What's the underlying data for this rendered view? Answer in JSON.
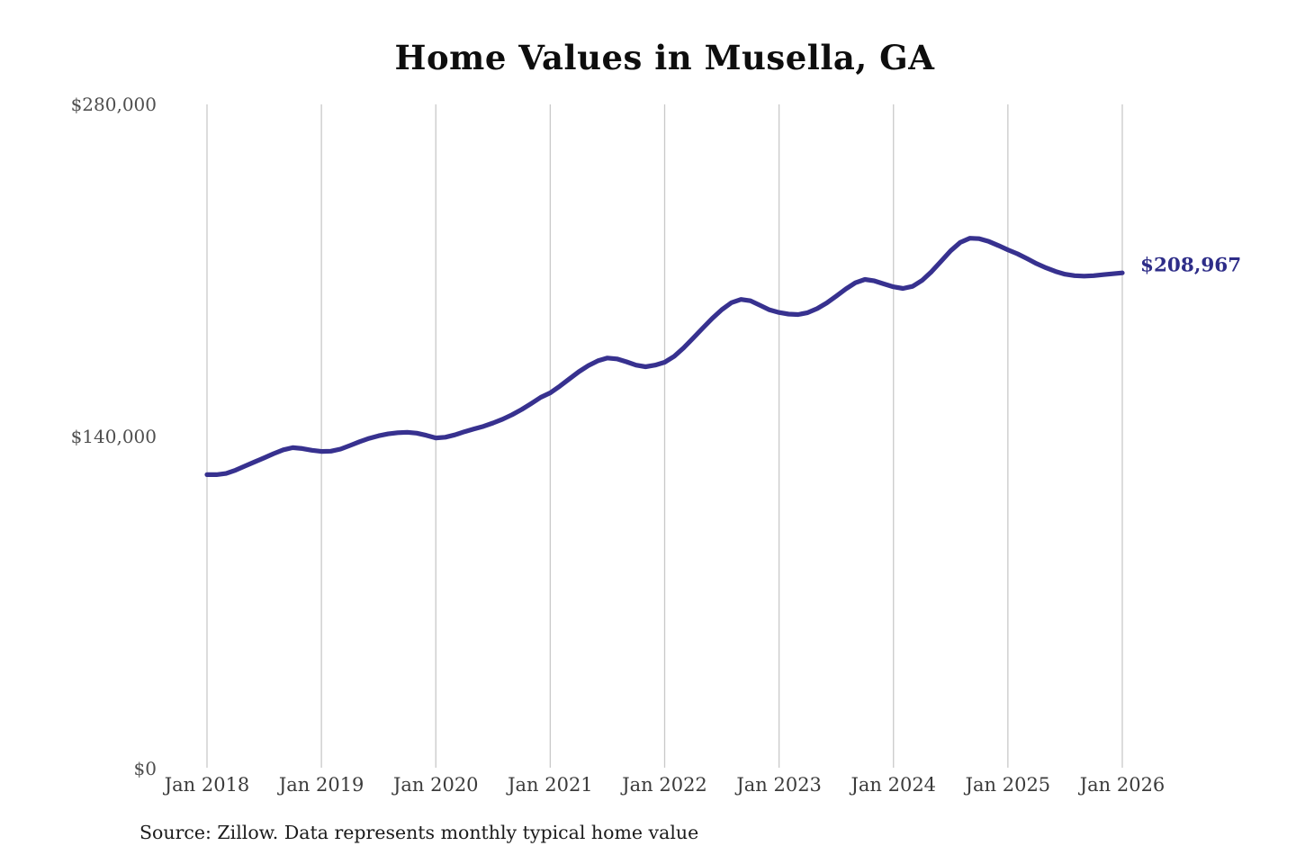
{
  "chart": {
    "title": "Home Values in Musella, GA",
    "end_label": "$208,967",
    "source": "Source: Zillow. Data represents monthly typical home value"
  },
  "chart_data": {
    "type": "line",
    "title": "Home Values in Musella, GA",
    "x_start": "Jan 2018",
    "x_end": "Jan 2026",
    "x_interval": "monthly",
    "x_tick_labels": [
      "Jan 2018",
      "Jan 2019",
      "Jan 2020",
      "Jan 2021",
      "Jan 2022",
      "Jan 2023",
      "Jan 2024",
      "Jan 2025",
      "Jan 2026"
    ],
    "y_ticks": [
      {
        "label": "$0",
        "value": 0
      },
      {
        "label": "$140,000",
        "value": 140000
      },
      {
        "label": "$280,000",
        "value": 280000
      }
    ],
    "ylim": [
      0,
      280000
    ],
    "grid": "vertical-only",
    "legend": "none",
    "end_label": "$208,967",
    "line_color": "#37318f",
    "end_label_color": "#2e2d88",
    "gridline_color": "#c9c9c9",
    "series": [
      {
        "name": "Typical home value",
        "values": [
          123900,
          123900,
          124400,
          125800,
          127600,
          129300,
          131000,
          132800,
          134400,
          135300,
          134900,
          134200,
          133700,
          133800,
          134700,
          136200,
          137800,
          139200,
          140300,
          141100,
          141600,
          141800,
          141400,
          140500,
          139400,
          139700,
          140700,
          142000,
          143200,
          144300,
          145700,
          147300,
          149200,
          151400,
          153900,
          156500,
          158400,
          161200,
          164300,
          167300,
          169900,
          171900,
          173100,
          172700,
          171500,
          170100,
          169400,
          170100,
          171300,
          173800,
          177400,
          181500,
          185700,
          189800,
          193500,
          196400,
          197800,
          197200,
          195300,
          193400,
          192300,
          191600,
          191400,
          192200,
          193900,
          196300,
          199200,
          202200,
          204800,
          206200,
          205600,
          204300,
          203100,
          202400,
          203300,
          205800,
          209500,
          213900,
          218300,
          221800,
          223600,
          223400,
          222200,
          220500,
          218700,
          217000,
          215000,
          212900,
          211100,
          209600,
          208400,
          207800,
          207600,
          207800,
          208200,
          208600,
          208967
        ]
      }
    ],
    "source": "Source: Zillow. Data represents monthly typical home value"
  }
}
